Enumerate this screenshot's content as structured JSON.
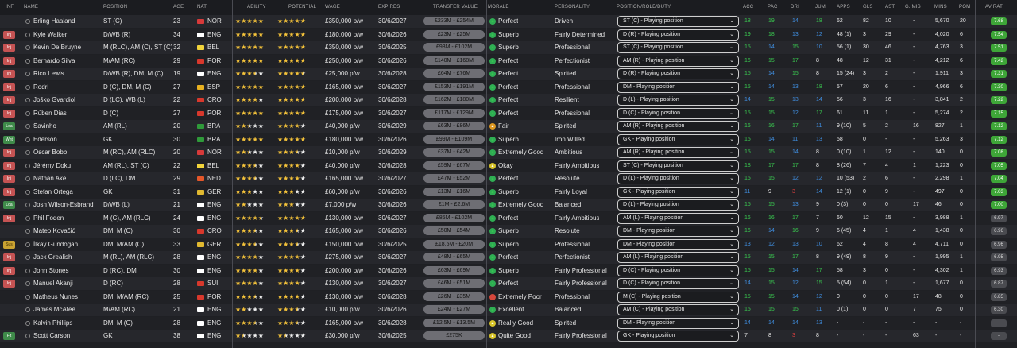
{
  "columns": {
    "inf": "INF",
    "name": "NAME",
    "position": "POSITION",
    "age": "AGE",
    "nat": "NAT",
    "ability": "ABILITY",
    "potential": "POTENTIAL",
    "wage": "WAGE",
    "expires": "EXPIRES",
    "transfer_value": "TRANSFER VALUE",
    "morale": "MORALE",
    "personality": "PERSONALITY",
    "role": "POSITION/ROLE/DUTY",
    "acc": "ACC",
    "pac": "PAC",
    "dri": "DRI",
    "jum": "JUM",
    "apps": "APPS",
    "gls": "GLS",
    "ast": "AST",
    "gmis": "G. MIS",
    "mins": "MINS",
    "pom": "POM",
    "avrat": "AV RAT"
  },
  "colors": {
    "flag_nor": "#d83a3a",
    "flag_eng": "#ffffff",
    "flag_bel": "#f2d43b",
    "flag_por": "#d8382c",
    "flag_esp": "#e8b120",
    "flag_cro": "#d8382c",
    "flag_bra": "#2f9a3a",
    "flag_ned": "#e5572a",
    "flag_ger": "#e1b930",
    "flag_sui": "#d8382c"
  },
  "players": [
    {
      "inf": "",
      "inf_color": "",
      "name": "Erling Haaland",
      "position": "ST (C)",
      "age": "23",
      "nat": "NOR",
      "ability": 5,
      "potential": 5,
      "wage": "£350,000 p/w",
      "expires": "30/6/2027",
      "tv": "£233M - £254M",
      "morale_icon": "g",
      "morale": "Perfect",
      "personality": "Driven",
      "role": "ST (C) - Playing position",
      "acc": "18",
      "acc_c": "g",
      "pac": "19",
      "pac_c": "g",
      "dri": "14",
      "dri_c": "b",
      "jum": "18",
      "jum_c": "g",
      "apps": "62",
      "gls": "82",
      "ast": "10",
      "gmis": "-",
      "mins": "5,670",
      "pom": "20",
      "avrat": "7.68",
      "avrat_hi": true
    },
    {
      "inf": "Inj",
      "inf_color": "red",
      "name": "Kyle Walker",
      "position": "D/WB (R)",
      "age": "34",
      "nat": "ENG",
      "ability": 5,
      "potential": 5,
      "wage": "£180,000 p/w",
      "expires": "30/6/2026",
      "tv": "£23M - £25M",
      "morale_icon": "g",
      "morale": "Superb",
      "personality": "Fairly Determined",
      "role": "D (R) - Playing position",
      "acc": "19",
      "acc_c": "g",
      "pac": "18",
      "pac_c": "g",
      "dri": "13",
      "dri_c": "b",
      "jum": "12",
      "jum_c": "b",
      "apps": "48 (1)",
      "gls": "3",
      "ast": "29",
      "gmis": "-",
      "mins": "4,020",
      "pom": "6",
      "avrat": "7.54",
      "avrat_hi": true
    },
    {
      "inf": "Inj",
      "inf_color": "red",
      "name": "Kevin De Bruyne",
      "position": "M (RLC), AM (C), ST (C)",
      "age": "32",
      "nat": "BEL",
      "ability": 5,
      "potential": 5,
      "wage": "£350,000 p/w",
      "expires": "30/6/2025",
      "tv": "£93M - £102M",
      "morale_icon": "g",
      "morale": "Superb",
      "personality": "Professional",
      "role": "ST (C) - Playing position",
      "acc": "15",
      "acc_c": "g",
      "pac": "14",
      "pac_c": "b",
      "dri": "15",
      "dri_c": "g",
      "jum": "10",
      "jum_c": "b",
      "apps": "56 (1)",
      "gls": "30",
      "ast": "46",
      "gmis": "-",
      "mins": "4,763",
      "pom": "3",
      "avrat": "7.51",
      "avrat_hi": true
    },
    {
      "inf": "Inj",
      "inf_color": "red",
      "name": "Bernardo Silva",
      "position": "M/AM (RC)",
      "age": "29",
      "nat": "POR",
      "ability": 5,
      "potential": 5,
      "wage": "£250,000 p/w",
      "expires": "30/6/2026",
      "tv": "£140M - £168M",
      "morale_icon": "g",
      "morale": "Perfect",
      "personality": "Perfectionist",
      "role": "AM (R) - Playing position",
      "acc": "16",
      "acc_c": "g",
      "pac": "15",
      "pac_c": "g",
      "dri": "17",
      "dri_c": "g",
      "jum": "8",
      "jum_c": "w",
      "apps": "48",
      "gls": "12",
      "ast": "31",
      "gmis": "-",
      "mins": "4,212",
      "pom": "6",
      "avrat": "7.42",
      "avrat_hi": true
    },
    {
      "inf": "Inj",
      "inf_color": "red",
      "name": "Rico Lewis",
      "position": "D/WB (R), DM, M (C)",
      "age": "19",
      "nat": "ENG",
      "ability": 3.5,
      "potential": 4.5,
      "wage": "£25,000 p/w",
      "expires": "30/6/2028",
      "tv": "£64M - £76M",
      "morale_icon": "g",
      "morale": "Perfect",
      "personality": "Spirited",
      "role": "D (R) - Playing position",
      "acc": "15",
      "acc_c": "g",
      "pac": "14",
      "pac_c": "b",
      "dri": "15",
      "dri_c": "g",
      "jum": "8",
      "jum_c": "w",
      "apps": "15 (24)",
      "gls": "3",
      "ast": "2",
      "gmis": "-",
      "mins": "1,911",
      "pom": "3",
      "avrat": "7.31",
      "avrat_hi": true
    },
    {
      "inf": "Inj",
      "inf_color": "red",
      "name": "Rodri",
      "position": "D (C), DM, M (C)",
      "age": "27",
      "nat": "ESP",
      "ability": 5,
      "potential": 5,
      "wage": "£165,000 p/w",
      "expires": "30/6/2027",
      "tv": "£153M - £191M",
      "morale_icon": "g",
      "morale": "Perfect",
      "personality": "Professional",
      "role": "DM - Playing position",
      "acc": "15",
      "acc_c": "g",
      "pac": "14",
      "pac_c": "b",
      "dri": "13",
      "dri_c": "b",
      "jum": "18",
      "jum_c": "g",
      "apps": "57",
      "gls": "20",
      "ast": "6",
      "gmis": "-",
      "mins": "4,966",
      "pom": "6",
      "avrat": "7.30",
      "avrat_hi": true
    },
    {
      "inf": "Inj",
      "inf_color": "red",
      "name": "Joško Gvardiol",
      "position": "D (LC), WB (L)",
      "age": "22",
      "nat": "CRO",
      "ability": 4,
      "potential": 5,
      "wage": "£200,000 p/w",
      "expires": "30/6/2028",
      "tv": "£162M - £180M",
      "morale_icon": "g",
      "morale": "Perfect",
      "personality": "Resilient",
      "role": "D (L) - Playing position",
      "acc": "14",
      "acc_c": "b",
      "pac": "15",
      "pac_c": "g",
      "dri": "13",
      "dri_c": "b",
      "jum": "14",
      "jum_c": "b",
      "apps": "56",
      "gls": "3",
      "ast": "16",
      "gmis": "-",
      "mins": "3,841",
      "pom": "2",
      "avrat": "7.22",
      "avrat_hi": true
    },
    {
      "inf": "Inj",
      "inf_color": "red",
      "name": "Rúben Dias",
      "position": "D (C)",
      "age": "27",
      "nat": "POR",
      "ability": 5,
      "potential": 5,
      "wage": "£175,000 p/w",
      "expires": "30/6/2027",
      "tv": "£117M - £129M",
      "morale_icon": "g",
      "morale": "Perfect",
      "personality": "Professional",
      "role": "D (C) - Playing position",
      "acc": "15",
      "acc_c": "g",
      "pac": "15",
      "pac_c": "g",
      "dri": "12",
      "dri_c": "b",
      "jum": "17",
      "jum_c": "g",
      "apps": "61",
      "gls": "11",
      "ast": "1",
      "gmis": "-",
      "mins": "5,274",
      "pom": "2",
      "avrat": "7.15",
      "avrat_hi": true
    },
    {
      "inf": "Loa",
      "inf_color": "green",
      "name": "Savinho",
      "position": "AM (RL)",
      "age": "20",
      "nat": "BRA",
      "ability": 2.5,
      "potential": 4,
      "wage": "£40,000 p/w",
      "expires": "30/6/2029",
      "tv": "£63M - £86M",
      "morale_icon": "o",
      "morale": "Fair",
      "personality": "Spirited",
      "role": "AM (R) - Playing position",
      "acc": "16",
      "acc_c": "g",
      "pac": "16",
      "pac_c": "g",
      "dri": "17",
      "dri_c": "g",
      "jum": "11",
      "jum_c": "b",
      "apps": "9 (10)",
      "gls": "5",
      "ast": "2",
      "gmis": "16",
      "mins": "827",
      "pom": "1",
      "avrat": "7.12",
      "avrat_hi": true
    },
    {
      "inf": "Wnt",
      "inf_color": "green",
      "name": "Ederson",
      "position": "GK",
      "age": "30",
      "nat": "BRA",
      "ability": 5,
      "potential": 5,
      "wage": "£180,000 p/w",
      "expires": "30/6/2026",
      "tv": "£99M - £109M",
      "morale_icon": "g",
      "morale": "Superb",
      "personality": "Iron Willed",
      "role": "GK - Playing position",
      "acc": "15",
      "acc_c": "g",
      "pac": "14",
      "pac_c": "b",
      "dri": "11",
      "dri_c": "b",
      "jum": "13",
      "jum_c": "b",
      "apps": "58",
      "gls": "0",
      "ast": "-",
      "gmis": "-",
      "mins": "5,263",
      "pom": "3",
      "avrat": "7.12",
      "avrat_hi": true
    },
    {
      "inf": "Inj",
      "inf_color": "red",
      "name": "Oscar Bobb",
      "position": "M (RC), AM (RLC)",
      "age": "20",
      "nat": "NOR",
      "ability": 2.5,
      "potential": 3.5,
      "wage": "£10,000 p/w",
      "expires": "30/6/2029",
      "tv": "£37M - £42M",
      "morale_icon": "g",
      "morale": "Extremely Good",
      "personality": "Ambitious",
      "role": "AM (R) - Playing position",
      "acc": "15",
      "acc_c": "g",
      "pac": "15",
      "pac_c": "g",
      "dri": "14",
      "dri_c": "b",
      "jum": "8",
      "jum_c": "w",
      "apps": "0 (10)",
      "gls": "1",
      "ast": "12",
      "gmis": "-",
      "mins": "140",
      "pom": "0",
      "avrat": "7.08",
      "avrat_hi": true
    },
    {
      "inf": "Inj",
      "inf_color": "red",
      "name": "Jérémy Doku",
      "position": "AM (RL), ST (C)",
      "age": "22",
      "nat": "BEL",
      "ability": 3.5,
      "potential": 4,
      "wage": "£40,000 p/w",
      "expires": "30/6/2028",
      "tv": "£59M - £67M",
      "morale_icon": "y",
      "morale": "Okay",
      "personality": "Fairly Ambitious",
      "role": "ST (C) - Playing position",
      "acc": "18",
      "acc_c": "g",
      "pac": "17",
      "pac_c": "g",
      "dri": "17",
      "dri_c": "g",
      "jum": "8",
      "jum_c": "w",
      "apps": "8 (26)",
      "gls": "7",
      "ast": "4",
      "gmis": "1",
      "mins": "1,223",
      "pom": "0",
      "avrat": "7.05",
      "avrat_hi": true
    },
    {
      "inf": "Inj",
      "inf_color": "red",
      "name": "Nathan Aké",
      "position": "D (LC), DM",
      "age": "29",
      "nat": "NED",
      "ability": 3.5,
      "potential": 4,
      "wage": "£165,000 p/w",
      "expires": "30/6/2027",
      "tv": "£47M - £52M",
      "morale_icon": "g",
      "morale": "Perfect",
      "personality": "Resolute",
      "role": "D (L) - Playing position",
      "acc": "15",
      "acc_c": "g",
      "pac": "15",
      "pac_c": "g",
      "dri": "12",
      "dri_c": "b",
      "jum": "12",
      "jum_c": "b",
      "apps": "10 (53)",
      "gls": "2",
      "ast": "6",
      "gmis": "-",
      "mins": "2,298",
      "pom": "1",
      "avrat": "7.04",
      "avrat_hi": true
    },
    {
      "inf": "Inj",
      "inf_color": "red",
      "name": "Stefan Ortega",
      "position": "GK",
      "age": "31",
      "nat": "GER",
      "ability": 3,
      "potential": 3,
      "wage": "£60,000 p/w",
      "expires": "30/6/2026",
      "tv": "£13M - £16M",
      "morale_icon": "g",
      "morale": "Superb",
      "personality": "Fairly Loyal",
      "role": "GK - Playing position",
      "acc": "11",
      "acc_c": "b",
      "pac": "9",
      "pac_c": "w",
      "dri": "3",
      "dri_c": "r",
      "jum": "14",
      "jum_c": "b",
      "apps": "12 (1)",
      "gls": "0",
      "ast": "9",
      "gmis": "-",
      "mins": "497",
      "pom": "0",
      "avrat": "7.03",
      "avrat_hi": true
    },
    {
      "inf": "Loa",
      "inf_color": "green",
      "name": "Josh Wilson-Esbrand",
      "position": "D/WB (L)",
      "age": "21",
      "nat": "ENG",
      "ability": 2,
      "potential": 3,
      "wage": "£7,000 p/w",
      "expires": "30/6/2026",
      "tv": "£1M - £2.6M",
      "morale_icon": "g",
      "morale": "Extremely Good",
      "personality": "Balanced",
      "role": "D (L) - Playing position",
      "acc": "15",
      "acc_c": "g",
      "pac": "15",
      "pac_c": "g",
      "dri": "13",
      "dri_c": "b",
      "jum": "9",
      "jum_c": "w",
      "apps": "0 (3)",
      "gls": "0",
      "ast": "0",
      "gmis": "17",
      "mins": "46",
      "pom": "0",
      "avrat": "7.00",
      "avrat_hi": true
    },
    {
      "inf": "Inj",
      "inf_color": "red",
      "name": "Phil Foden",
      "position": "M (C), AM (RLC)",
      "age": "24",
      "nat": "ENG",
      "ability": 4.5,
      "potential": 5,
      "wage": "£130,000 p/w",
      "expires": "30/6/2027",
      "tv": "£85M - £102M",
      "morale_icon": "g",
      "morale": "Perfect",
      "personality": "Fairly Ambitious",
      "role": "AM (L) - Playing position",
      "acc": "16",
      "acc_c": "g",
      "pac": "16",
      "pac_c": "g",
      "dri": "17",
      "dri_c": "g",
      "jum": "7",
      "jum_c": "w",
      "apps": "60",
      "gls": "12",
      "ast": "15",
      "gmis": "-",
      "mins": "3,988",
      "pom": "1",
      "avrat": "6.97",
      "avrat_hi": false
    },
    {
      "inf": "",
      "inf_color": "",
      "name": "Mateo Kovačić",
      "position": "DM, M (C)",
      "age": "30",
      "nat": "CRO",
      "ability": 3.5,
      "potential": 3.5,
      "wage": "£165,000 p/w",
      "expires": "30/6/2026",
      "tv": "£50M - £54M",
      "morale_icon": "g",
      "morale": "Superb",
      "personality": "Resolute",
      "role": "DM - Playing position",
      "acc": "16",
      "acc_c": "g",
      "pac": "14",
      "pac_c": "b",
      "dri": "16",
      "dri_c": "g",
      "jum": "9",
      "jum_c": "w",
      "apps": "6 (45)",
      "gls": "4",
      "ast": "1",
      "gmis": "4",
      "mins": "1,438",
      "pom": "0",
      "avrat": "6.96",
      "avrat_hi": false
    },
    {
      "inf": "Sus",
      "inf_color": "yellow",
      "name": "İlkay Gündoğan",
      "position": "DM, M/AM (C)",
      "age": "33",
      "nat": "GER",
      "ability": 3.5,
      "potential": 3.5,
      "wage": "£150,000 p/w",
      "expires": "30/6/2025",
      "tv": "£18.5M - £20M",
      "morale_icon": "g",
      "morale": "Superb",
      "personality": "Professional",
      "role": "DM - Playing position",
      "acc": "13",
      "acc_c": "b",
      "pac": "12",
      "pac_c": "b",
      "dri": "13",
      "dri_c": "b",
      "jum": "10",
      "jum_c": "b",
      "apps": "62",
      "gls": "4",
      "ast": "8",
      "gmis": "4",
      "mins": "4,711",
      "pom": "0",
      "avrat": "6.96",
      "avrat_hi": false
    },
    {
      "inf": "Inj",
      "inf_color": "red",
      "name": "Jack Grealish",
      "position": "M (RL), AM (RLC)",
      "age": "28",
      "nat": "ENG",
      "ability": 4,
      "potential": 4,
      "wage": "£275,000 p/w",
      "expires": "30/6/2027",
      "tv": "£48M - £65M",
      "morale_icon": "g",
      "morale": "Perfect",
      "personality": "Perfectionist",
      "role": "AM (L) - Playing position",
      "acc": "15",
      "acc_c": "g",
      "pac": "15",
      "pac_c": "g",
      "dri": "17",
      "dri_c": "g",
      "jum": "8",
      "jum_c": "w",
      "apps": "9 (49)",
      "gls": "8",
      "ast": "9",
      "gmis": "-",
      "mins": "1,995",
      "pom": "1",
      "avrat": "6.95",
      "avrat_hi": false
    },
    {
      "inf": "Inj",
      "inf_color": "red",
      "name": "John Stones",
      "position": "D (RC), DM",
      "age": "30",
      "nat": "ENG",
      "ability": 4,
      "potential": 4,
      "wage": "£200,000 p/w",
      "expires": "30/6/2026",
      "tv": "£63M - £69M",
      "morale_icon": "g",
      "morale": "Superb",
      "personality": "Fairly Professional",
      "role": "D (C) - Playing position",
      "acc": "15",
      "acc_c": "g",
      "pac": "15",
      "pac_c": "g",
      "dri": "14",
      "dri_c": "b",
      "jum": "17",
      "jum_c": "g",
      "apps": "58",
      "gls": "3",
      "ast": "0",
      "gmis": "-",
      "mins": "4,302",
      "pom": "1",
      "avrat": "6.93",
      "avrat_hi": false
    },
    {
      "inf": "Inj",
      "inf_color": "red",
      "name": "Manuel Akanji",
      "position": "D (RC)",
      "age": "28",
      "nat": "SUI",
      "ability": 4,
      "potential": 4,
      "wage": "£130,000 p/w",
      "expires": "30/6/2027",
      "tv": "£46M - £51M",
      "morale_icon": "g",
      "morale": "Perfect",
      "personality": "Fairly Professional",
      "role": "D (C) - Playing position",
      "acc": "14",
      "acc_c": "b",
      "pac": "15",
      "pac_c": "g",
      "dri": "12",
      "dri_c": "b",
      "jum": "15",
      "jum_c": "g",
      "apps": "5 (54)",
      "gls": "0",
      "ast": "1",
      "gmis": "-",
      "mins": "1,677",
      "pom": "0",
      "avrat": "6.87",
      "avrat_hi": false
    },
    {
      "inf": "",
      "inf_color": "",
      "name": "Matheus Nunes",
      "position": "DM, M/AM (RC)",
      "age": "25",
      "nat": "POR",
      "ability": 3.5,
      "potential": 4,
      "wage": "£130,000 p/w",
      "expires": "30/6/2028",
      "tv": "£26M - £35M",
      "morale_icon": "r",
      "morale": "Extremely Poor",
      "personality": "Professional",
      "role": "M (C) - Playing position",
      "acc": "15",
      "acc_c": "g",
      "pac": "15",
      "pac_c": "g",
      "dri": "14",
      "dri_c": "b",
      "jum": "12",
      "jum_c": "b",
      "apps": "0",
      "gls": "0",
      "ast": "0",
      "gmis": "17",
      "mins": "48",
      "pom": "0",
      "avrat": "6.85",
      "avrat_hi": false
    },
    {
      "inf": "",
      "inf_color": "",
      "name": "James McAtee",
      "position": "M/AM (RC)",
      "age": "21",
      "nat": "ENG",
      "ability": 2,
      "potential": 3.5,
      "wage": "£10,000 p/w",
      "expires": "30/6/2026",
      "tv": "£24M - £27M",
      "morale_icon": "g",
      "morale": "Excellent",
      "personality": "Balanced",
      "role": "AM (C) - Playing position",
      "acc": "15",
      "acc_c": "g",
      "pac": "15",
      "pac_c": "g",
      "dri": "15",
      "dri_c": "g",
      "jum": "11",
      "jum_c": "b",
      "apps": "0 (1)",
      "gls": "0",
      "ast": "0",
      "gmis": "7",
      "mins": "75",
      "pom": "0",
      "avrat": "6.30",
      "avrat_hi": false
    },
    {
      "inf": "",
      "inf_color": "",
      "name": "Kalvin Phillips",
      "position": "DM, M (C)",
      "age": "28",
      "nat": "ENG",
      "ability": 3.5,
      "potential": 3.5,
      "wage": "£165,000 p/w",
      "expires": "30/6/2028",
      "tv": "£12.5M - £13.5M",
      "morale_icon": "y",
      "morale": "Really Good",
      "personality": "Spirited",
      "role": "DM - Playing position",
      "acc": "14",
      "acc_c": "b",
      "pac": "14",
      "pac_c": "b",
      "dri": "14",
      "dri_c": "b",
      "jum": "13",
      "jum_c": "b",
      "apps": "-",
      "gls": "-",
      "ast": "-",
      "gmis": "-",
      "mins": "-",
      "pom": "-",
      "avrat": "-",
      "avrat_hi": false
    },
    {
      "inf": "Fit",
      "inf_color": "green",
      "name": "Scott Carson",
      "position": "GK",
      "age": "38",
      "nat": "ENG",
      "ability": 1.5,
      "potential": 1.5,
      "wage": "£30,000 p/w",
      "expires": "30/6/2025",
      "tv": "£275K",
      "morale_icon": "y",
      "morale": "Quite Good",
      "personality": "Fairly Professional",
      "role": "GK - Playing position",
      "acc": "7",
      "acc_c": "w",
      "pac": "8",
      "pac_c": "w",
      "dri": "3",
      "dri_c": "r",
      "jum": "8",
      "jum_c": "w",
      "apps": "-",
      "gls": "-",
      "ast": "-",
      "gmis": "63",
      "mins": "-",
      "pom": "-",
      "avrat": "-",
      "avrat_hi": false
    }
  ]
}
